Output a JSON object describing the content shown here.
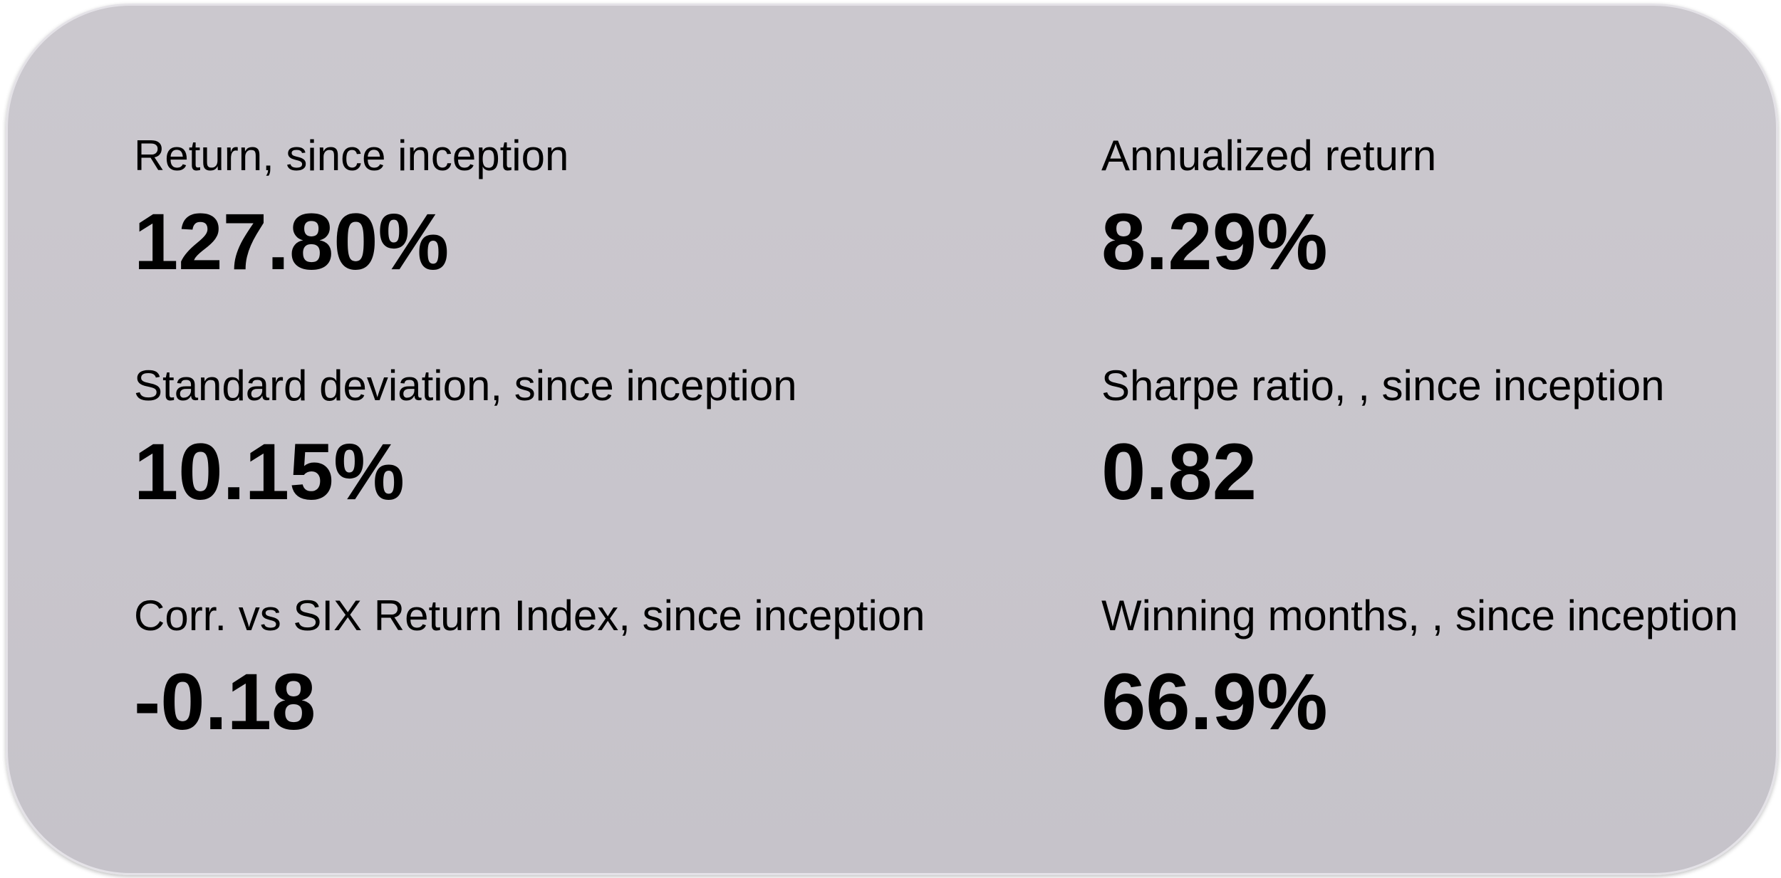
{
  "metrics": [
    {
      "label": "Return, since inception",
      "value": "127.80%"
    },
    {
      "label": "Annualized return",
      "value": "8.29%"
    },
    {
      "label": "Standard deviation, since inception",
      "value": "10.15%"
    },
    {
      "label": "Sharpe ratio, , since inception",
      "value": "0.82"
    },
    {
      "label": "Corr. vs SIX Return Index, since inception",
      "value": "-0.18"
    },
    {
      "label": "Winning months, , since inception",
      "value": "66.9%"
    }
  ]
}
